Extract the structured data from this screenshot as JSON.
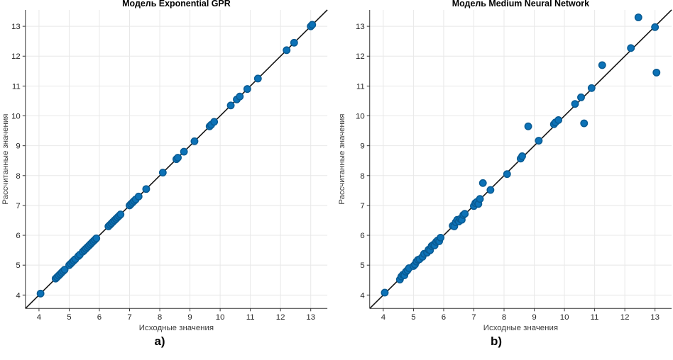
{
  "colors": {
    "marker_fill": "#0C72B7",
    "marker_edge": "#085A92",
    "reference_line": "#141414",
    "grid": "#E8E8E8",
    "axis": "#333333",
    "tick_label": "#262626",
    "axis_label": "#3A3A3A",
    "title": "#000000",
    "background": "#FFFFFF"
  },
  "chart_data": [
    {
      "type": "scatter",
      "title": "Модель Exponential GPR",
      "xlabel": "Исходные значения",
      "ylabel": "Рассчитанные значения",
      "caption": "a)",
      "xlim": [
        3.55,
        13.55
      ],
      "ylim": [
        3.55,
        13.55
      ],
      "xticks": [
        4,
        5,
        6,
        7,
        8,
        9,
        10,
        11,
        12,
        13
      ],
      "yticks": [
        4,
        5,
        6,
        7,
        8,
        9,
        10,
        11,
        12,
        13
      ],
      "grid": true,
      "legend": "none",
      "reference_line": "y = x (diagonal, corner to corner)",
      "series": [
        {
          "name": "predicted-vs-actual",
          "x": [
            4.05,
            4.55,
            4.6,
            4.65,
            4.7,
            4.75,
            4.8,
            4.85,
            5.0,
            5.05,
            5.1,
            5.15,
            5.2,
            5.3,
            5.35,
            5.45,
            5.5,
            5.55,
            5.6,
            5.65,
            5.7,
            5.75,
            5.8,
            5.85,
            5.9,
            6.3,
            6.35,
            6.4,
            6.45,
            6.5,
            6.55,
            6.6,
            6.65,
            6.7,
            7.0,
            7.05,
            7.1,
            7.15,
            7.2,
            7.3,
            7.55,
            8.1,
            8.55,
            8.6,
            8.8,
            9.15,
            9.65,
            9.7,
            9.8,
            10.35,
            10.55,
            10.65,
            10.9,
            11.25,
            12.2,
            12.45,
            13.0,
            13.05
          ],
          "y": [
            4.05,
            4.55,
            4.6,
            4.65,
            4.7,
            4.75,
            4.8,
            4.85,
            5.0,
            5.05,
            5.1,
            5.15,
            5.2,
            5.3,
            5.35,
            5.45,
            5.5,
            5.55,
            5.6,
            5.65,
            5.7,
            5.75,
            5.8,
            5.85,
            5.9,
            6.3,
            6.35,
            6.4,
            6.45,
            6.5,
            6.55,
            6.6,
            6.65,
            6.7,
            7.0,
            7.05,
            7.1,
            7.15,
            7.2,
            7.3,
            7.55,
            8.1,
            8.55,
            8.6,
            8.8,
            9.15,
            9.65,
            9.7,
            9.8,
            10.35,
            10.55,
            10.65,
            10.9,
            11.25,
            12.2,
            12.45,
            13.0,
            13.05
          ]
        }
      ]
    },
    {
      "type": "scatter",
      "title": "Модель Medium Neural Network",
      "xlabel": "Исходные значения",
      "ylabel": "Рассчитанные значения",
      "caption": "b)",
      "xlim": [
        3.55,
        13.55
      ],
      "ylim": [
        3.55,
        13.55
      ],
      "xticks": [
        4,
        5,
        6,
        7,
        8,
        9,
        10,
        11,
        12,
        13
      ],
      "yticks": [
        4,
        5,
        6,
        7,
        8,
        9,
        10,
        11,
        12,
        13
      ],
      "grid": true,
      "legend": "none",
      "reference_line": "y = x (diagonal, corner to corner)",
      "series": [
        {
          "name": "predicted-vs-actual",
          "x": [
            4.05,
            4.55,
            4.6,
            4.65,
            4.7,
            4.75,
            4.8,
            4.85,
            5.0,
            5.05,
            5.1,
            5.15,
            5.2,
            5.3,
            5.35,
            5.45,
            5.5,
            5.55,
            5.6,
            5.65,
            5.7,
            5.75,
            5.8,
            5.85,
            5.9,
            6.3,
            6.35,
            6.4,
            6.45,
            6.5,
            6.55,
            6.6,
            6.65,
            6.7,
            7.0,
            7.05,
            7.1,
            7.15,
            7.2,
            7.3,
            7.55,
            8.1,
            8.55,
            8.6,
            8.8,
            9.15,
            9.65,
            9.7,
            9.8,
            10.35,
            10.55,
            10.65,
            10.9,
            11.25,
            12.2,
            12.45,
            13.0,
            13.05
          ],
          "y": [
            4.08,
            4.52,
            4.62,
            4.68,
            4.66,
            4.78,
            4.83,
            4.9,
            4.97,
            5.02,
            5.12,
            5.18,
            5.2,
            5.28,
            5.38,
            5.42,
            5.52,
            5.5,
            5.64,
            5.68,
            5.66,
            5.78,
            5.83,
            5.8,
            5.92,
            6.32,
            6.3,
            6.44,
            6.52,
            6.46,
            6.55,
            6.52,
            6.68,
            6.72,
            6.98,
            7.08,
            7.12,
            7.05,
            7.22,
            7.75,
            7.52,
            8.05,
            8.57,
            8.65,
            9.65,
            9.17,
            9.72,
            9.78,
            9.86,
            10.4,
            10.62,
            9.75,
            10.93,
            11.7,
            12.27,
            13.3,
            12.97,
            11.45
          ]
        }
      ],
      "outliers_note": "points off diagonal: (7.3,7.75), (8.8,9.65), (10.65,9.75), (11.25,11.7), (12.45,13.3), (13.05,11.45)"
    }
  ]
}
